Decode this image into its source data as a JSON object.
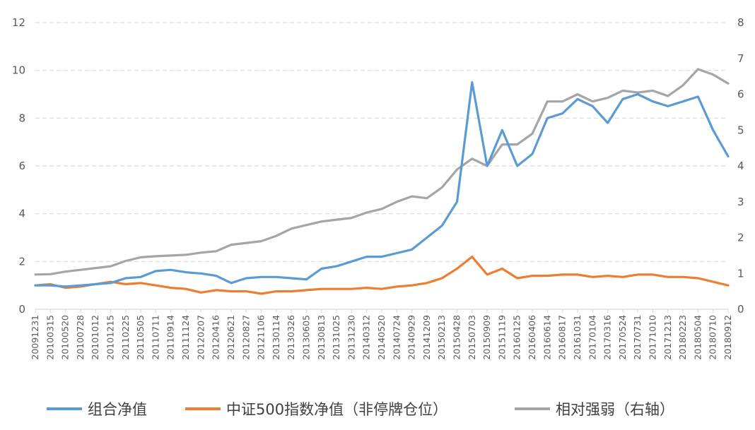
{
  "chart_data": {
    "type": "line",
    "title": "",
    "xlabel": "",
    "ylabel": "",
    "grid": "horizontal dashed",
    "legend_position": "bottom",
    "y_left": {
      "min": 0,
      "max": 12,
      "ticks": [
        "0",
        "2",
        "4",
        "6",
        "8",
        "10",
        "12"
      ]
    },
    "y_right": {
      "min": 0,
      "max": 8,
      "ticks": [
        "0",
        "1",
        "2",
        "3",
        "4",
        "5",
        "6",
        "7",
        "8"
      ]
    },
    "x_tick_labels": [
      "20091231",
      "20100315",
      "20100520",
      "20100728",
      "20101012",
      "20101215",
      "20110225",
      "20110505",
      "20110711",
      "20110914",
      "20111124",
      "20120207",
      "20120416",
      "20120621",
      "20120827",
      "20121106",
      "20130114",
      "20130326",
      "20130605",
      "20130813",
      "20131025",
      "20131230",
      "20140312",
      "20140520",
      "20140724",
      "20140929",
      "20141209",
      "20150213",
      "20150428",
      "20150703",
      "20150909",
      "20151119",
      "20160125",
      "20160406",
      "20160614",
      "20160817",
      "20161031",
      "20170104",
      "20170316",
      "20170524",
      "20170731",
      "20171010",
      "20171213",
      "20180223",
      "20180504",
      "20180710",
      "20180912"
    ],
    "series": [
      {
        "name": "组合净值",
        "color": "#5B9BD5",
        "axis": "left",
        "values": [
          1.0,
          1.0,
          0.95,
          1.0,
          1.05,
          1.1,
          1.3,
          1.35,
          1.6,
          1.65,
          1.55,
          1.5,
          1.4,
          1.1,
          1.3,
          1.35,
          1.35,
          1.3,
          1.25,
          1.7,
          1.8,
          2.0,
          2.2,
          2.2,
          2.35,
          2.5,
          3.0,
          3.5,
          4.5,
          9.5,
          6.0,
          7.5,
          6.0,
          6.5,
          8.0,
          8.2,
          8.8,
          8.5,
          7.8,
          8.8,
          9.0,
          8.7,
          8.5,
          8.7,
          8.9,
          7.5,
          6.4
        ]
      },
      {
        "name": "中证500指数净值（非停牌仓位）",
        "color": "#ED7D31",
        "axis": "left",
        "values": [
          1.0,
          1.05,
          0.9,
          0.95,
          1.05,
          1.15,
          1.05,
          1.1,
          1.0,
          0.9,
          0.85,
          0.7,
          0.8,
          0.75,
          0.75,
          0.65,
          0.75,
          0.75,
          0.8,
          0.85,
          0.85,
          0.85,
          0.9,
          0.85,
          0.95,
          1.0,
          1.1,
          1.3,
          1.7,
          2.2,
          1.45,
          1.7,
          1.3,
          1.4,
          1.4,
          1.45,
          1.45,
          1.35,
          1.4,
          1.35,
          1.45,
          1.45,
          1.35,
          1.35,
          1.3,
          1.15,
          1.0
        ]
      },
      {
        "name": "相对强弱（右轴）",
        "color": "#A5A5A5",
        "axis": "right",
        "values": [
          0.97,
          0.98,
          1.05,
          1.1,
          1.15,
          1.2,
          1.35,
          1.45,
          1.48,
          1.5,
          1.52,
          1.58,
          1.62,
          1.8,
          1.85,
          1.9,
          2.05,
          2.25,
          2.35,
          2.45,
          2.5,
          2.55,
          2.7,
          2.8,
          3.0,
          3.15,
          3.1,
          3.4,
          3.9,
          4.2,
          4.0,
          4.6,
          4.6,
          4.9,
          5.8,
          5.8,
          6.0,
          5.8,
          5.9,
          6.1,
          6.05,
          6.1,
          5.95,
          6.25,
          6.7,
          6.55,
          6.3
        ]
      }
    ]
  }
}
